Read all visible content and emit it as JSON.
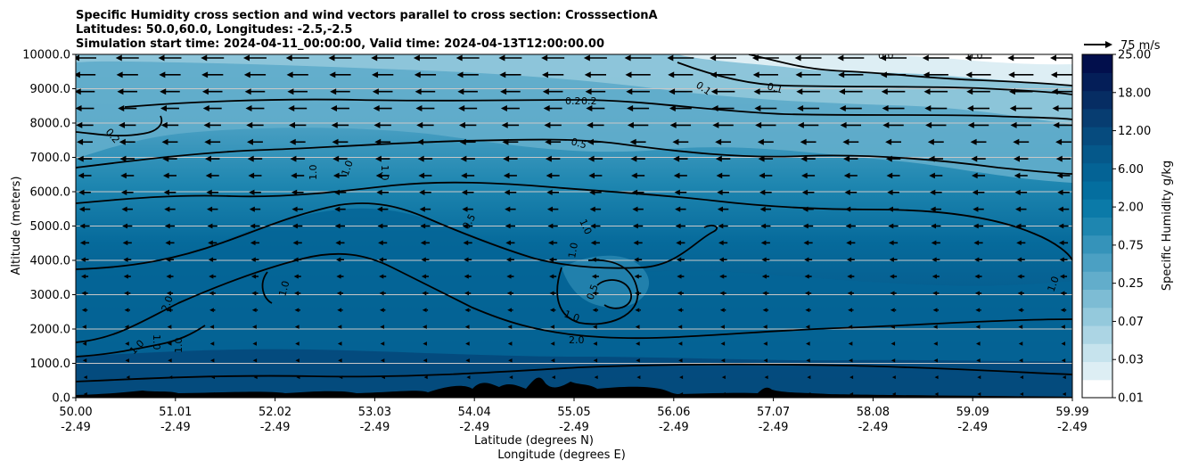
{
  "chart_data": {
    "type": "contour",
    "title_lines": [
      "Specific Humidity cross section and wind vectors parallel to cross section: CrosssectionA",
      "Latitudes: 50.0,60.0, Longitudes: -2.5,-2.5",
      "Simulation start time: 2024-04-11_00:00:00, Valid time: 2024-04-13T12:00:00.00"
    ],
    "ylabel": "Altitude (meters)",
    "xlabel_lines": [
      "Latitude (degrees N)",
      "Longitude (degrees E)"
    ],
    "ylim": [
      0,
      10000
    ],
    "y_ticks": [
      "0.0",
      "1000.0",
      "2000.0",
      "3000.0",
      "4000.0",
      "5000.0",
      "6000.0",
      "7000.0",
      "8000.0",
      "9000.0",
      "10000.0"
    ],
    "x_ticks": [
      {
        "lat": "50.00",
        "lon": "-2.49"
      },
      {
        "lat": "51.01",
        "lon": "-2.49"
      },
      {
        "lat": "52.02",
        "lon": "-2.49"
      },
      {
        "lat": "53.03",
        "lon": "-2.49"
      },
      {
        "lat": "54.04",
        "lon": "-2.49"
      },
      {
        "lat": "55.05",
        "lon": "-2.49"
      },
      {
        "lat": "56.06",
        "lon": "-2.49"
      },
      {
        "lat": "57.07",
        "lon": "-2.49"
      },
      {
        "lat": "58.08",
        "lon": "-2.49"
      },
      {
        "lat": "59.09",
        "lon": "-2.49"
      },
      {
        "lat": "59.99",
        "lon": "-2.49"
      }
    ],
    "grid": "horizontal",
    "colorbar": {
      "label": "Specific Humidity g/kg",
      "tick_labels": [
        "0.01",
        "0.03",
        "0.07",
        "0.25",
        "0.75",
        "2.00",
        "6.00",
        "12.00",
        "18.00",
        "25.00"
      ],
      "colors": [
        "#ffffff",
        "#ddeef4",
        "#c6e3ed",
        "#acd5e4",
        "#94c9dc",
        "#7dbcd4",
        "#62adcb",
        "#4ba0c3",
        "#3593ba",
        "#1e86b0",
        "#0b7aa8",
        "#046e9f",
        "#046395",
        "#05588a",
        "#064b7e",
        "#073d71",
        "#062d63",
        "#041e58",
        "#020f4c"
      ]
    },
    "quiver_key": {
      "label": "75 m/s"
    },
    "contour_labels": [
      "0.1",
      "0.2",
      "0.5",
      "1.0",
      "2.0"
    ]
  }
}
